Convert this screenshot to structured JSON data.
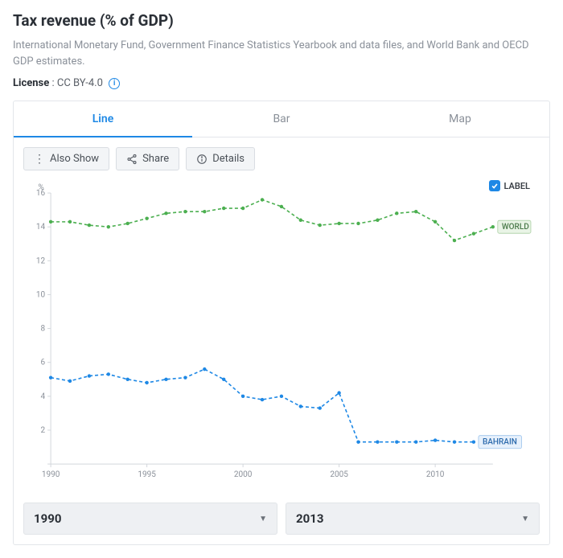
{
  "header": {
    "title": "Tax revenue (% of GDP)",
    "subtitle": "International Monetary Fund, Government Finance Statistics Yearbook and data files, and World Bank and OECD GDP estimates.",
    "license_label": "License",
    "license_value": "CC BY-4.0"
  },
  "tabs": {
    "items": [
      "Line",
      "Bar",
      "Map"
    ],
    "active_index": 0
  },
  "toolbar": {
    "also_show": "Also Show",
    "share": "Share",
    "details": "Details"
  },
  "label_toggle": {
    "text": "LABEL",
    "checked": true
  },
  "chart": {
    "type": "line",
    "y_unit": "%",
    "background_color": "#ffffff",
    "grid_color": "#e9ebee",
    "axis_color": "#d3d7dc",
    "tick_label_color": "#8a9099",
    "tick_fontsize": 10,
    "xlim": [
      1990,
      2013
    ],
    "ylim": [
      0,
      16
    ],
    "ytick_step": 2,
    "xticks": [
      1990,
      1995,
      2000,
      2005,
      2010
    ],
    "line_width": 1.6,
    "marker_radius": 2.2,
    "series": [
      {
        "name": "WORLD",
        "color": "#4caf50",
        "tag_bg": "#e9f4e6",
        "tag_border": "#a9cfa2",
        "tag_text_color": "#4a7a4a",
        "years": [
          1990,
          1991,
          1992,
          1993,
          1994,
          1995,
          1996,
          1997,
          1998,
          1999,
          2000,
          2001,
          2002,
          2003,
          2004,
          2005,
          2006,
          2007,
          2008,
          2009,
          2010,
          2011,
          2012,
          2013
        ],
        "values": [
          14.3,
          14.3,
          14.1,
          14.0,
          14.2,
          14.5,
          14.8,
          14.9,
          14.9,
          15.1,
          15.1,
          15.6,
          15.2,
          14.4,
          14.1,
          14.2,
          14.2,
          14.4,
          14.8,
          14.9,
          14.3,
          13.2,
          13.6,
          14.0
        ]
      },
      {
        "name": "BAHRAIN",
        "color": "#1e88e5",
        "tag_bg": "#e7f1fc",
        "tag_border": "#9cc3ec",
        "tag_text_color": "#2b6aac",
        "years": [
          1990,
          1991,
          1992,
          1993,
          1994,
          1995,
          1996,
          1997,
          1998,
          1999,
          2000,
          2001,
          2002,
          2003,
          2004,
          2005,
          2006,
          2007,
          2008,
          2009,
          2010,
          2011,
          2012
        ],
        "values": [
          5.1,
          4.9,
          5.2,
          5.3,
          5.0,
          4.8,
          5.0,
          5.1,
          5.6,
          5.0,
          4.0,
          3.8,
          4.0,
          3.4,
          3.3,
          4.2,
          1.3,
          1.3,
          1.3,
          1.3,
          1.4,
          1.3,
          1.3
        ],
        "detached_point": {
          "year": 2013,
          "value": 1.2
        }
      }
    ]
  },
  "selectors": {
    "start": "1990",
    "end": "2013"
  }
}
